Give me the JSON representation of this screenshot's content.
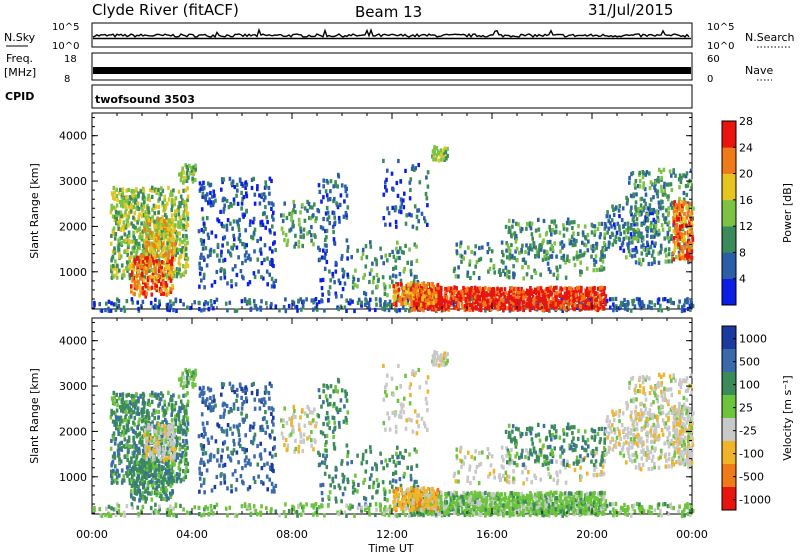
{
  "header": {
    "station": "Clyde River (fitACF)",
    "beam": "Beam 13",
    "date": "31/Jul/2015"
  },
  "strips": {
    "nsky_label": "N.Sky",
    "nsky_ticks": [
      "10^5",
      "10^0"
    ],
    "nsearch_label": "N.Search",
    "nsearch_ticks": [
      "10^5",
      "10^0"
    ],
    "freq_label_top": "Freq.",
    "freq_label_unit": "[MHz]",
    "freq_ticks": [
      "18",
      "8"
    ],
    "nave_label": "Nave",
    "nave_ticks": [
      "60",
      "0"
    ],
    "cpid_label": "CPID",
    "cpid_value": "twofsound 3503"
  },
  "chart_data": [
    {
      "type": "heatmap",
      "quantity": "Power",
      "ylabel": "Slant Range [km]",
      "ylim": [
        180,
        4500
      ],
      "yticks": [
        "1000",
        "2000",
        "3000",
        "4000"
      ],
      "colorbar_label": "Power [dB]",
      "colorbar_ticks": [
        "4",
        "8",
        "12",
        "16",
        "20",
        "24",
        "28"
      ],
      "colors": [
        "#0a1ee6",
        "#2a5fa8",
        "#3a8a5a",
        "#7cc243",
        "#e6c51e",
        "#f07a18",
        "#e8140e"
      ]
    },
    {
      "type": "heatmap",
      "quantity": "Velocity",
      "ylabel": "Slant Range [km]",
      "ylim": [
        180,
        4500
      ],
      "yticks": [
        "1000",
        "2000",
        "3000",
        "4000"
      ],
      "colorbar_label": "Velocity [m s⁻¹]",
      "colorbar_ticks": [
        "1000",
        "500",
        "100",
        "25",
        "-25",
        "-100",
        "-500",
        "-1000"
      ],
      "colors": [
        "#1a3aa0",
        "#3a6aaa",
        "#3a8a5a",
        "#6cc43c",
        "#c8c8c8",
        "#f0b428",
        "#f07a18",
        "#e8140e"
      ]
    }
  ],
  "xaxis": {
    "label": "Time UT",
    "ticks": [
      "00:00",
      "04:00",
      "08:00",
      "12:00",
      "16:00",
      "20:00",
      "00:00"
    ]
  }
}
